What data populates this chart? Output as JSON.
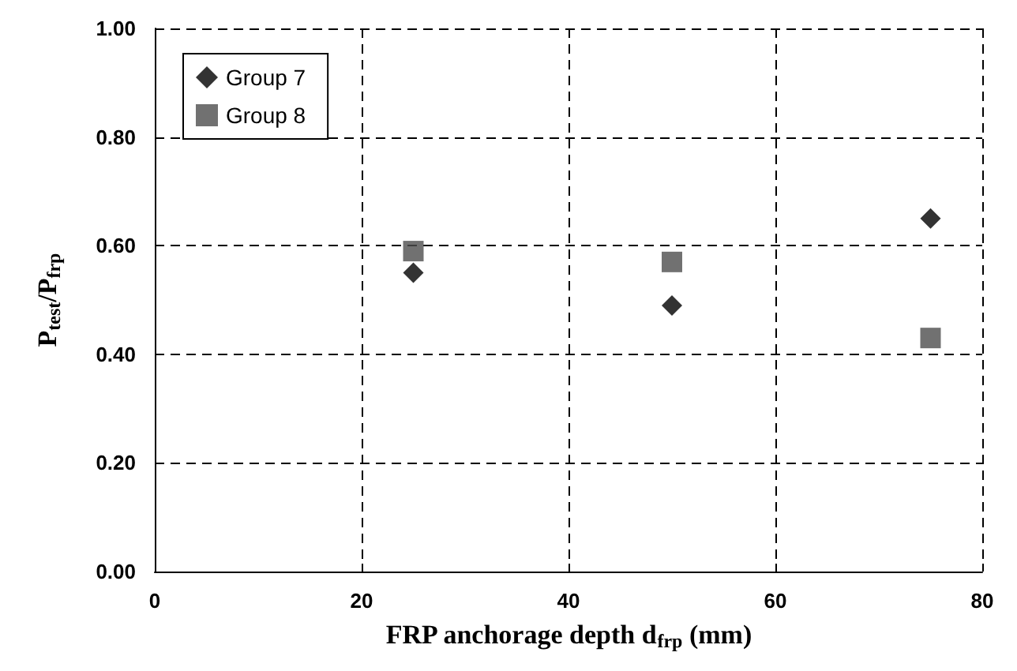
{
  "chart_data": {
    "type": "scatter",
    "xlabel": "FRP anchorage depth d$_{frp}$ (mm)",
    "ylabel": "P$_{test}$/P$_{frp}$",
    "series": [
      {
        "name": "Group 7",
        "color": "#000000",
        "marker": "diamond",
        "x": [
          25,
          50,
          75
        ],
        "values": [
          0.55,
          0.49,
          0.65
        ]
      },
      {
        "name": "Group 8",
        "color": "#4d4d4d",
        "marker": "square",
        "x": [
          25,
          50,
          75
        ],
        "values": [
          0.59,
          0.57,
          0.43
        ]
      }
    ],
    "xlim": [
      0,
      80
    ],
    "xticks": [
      0,
      20,
      40,
      60,
      80
    ],
    "ylim": [
      0,
      1
    ],
    "yticks": [
      {
        "value": 0,
        "label": "0.00"
      },
      {
        "value": 0.2,
        "label": "0.20"
      },
      {
        "value": 0.4,
        "label": "0.40"
      },
      {
        "value": 0.6,
        "label": "0.60"
      },
      {
        "value": 0.8,
        "label": "0.80"
      },
      {
        "value": 1,
        "label": "1.00"
      }
    ],
    "grid": true,
    "legend": "top left"
  }
}
